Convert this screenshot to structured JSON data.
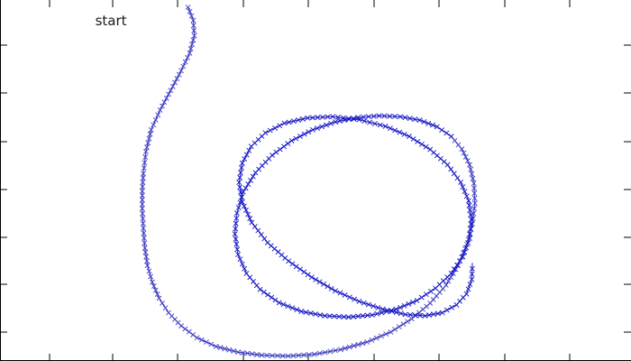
{
  "chart_data": {
    "type": "line",
    "title": "",
    "xlabel": "",
    "ylabel": "",
    "grid": false,
    "legend": "none",
    "marker": "x",
    "line_color": "#3f3fc4",
    "dense_color": "#1010c8",
    "xlim": [
      0,
      10
    ],
    "ylim": [
      0,
      8
    ],
    "annotation": {
      "text": "start",
      "x": 1.5,
      "y": 7.6
    },
    "series": [
      {
        "x": [
          2.75,
          2.85,
          2.87,
          2.78,
          2.62,
          2.42,
          2.22,
          2.05,
          1.95,
          1.9,
          1.88,
          1.88,
          1.9,
          1.93,
          1.98,
          2.07,
          2.2,
          2.38,
          2.62,
          2.92,
          3.28,
          3.7,
          4.15,
          4.65,
          5.15,
          5.65,
          6.15,
          6.6,
          7.0,
          7.35,
          7.65,
          7.88,
          8.05,
          8.15,
          8.2,
          8.18,
          8.1,
          7.95,
          7.75,
          7.48,
          7.15,
          6.78,
          6.38,
          5.98,
          5.55,
          5.12,
          4.72,
          4.35,
          4.03,
          3.8,
          3.68,
          3.64,
          3.7,
          3.86,
          4.12,
          4.48,
          4.9,
          5.35,
          5.8,
          6.25,
          6.7,
          7.1,
          7.45,
          7.75,
          7.97,
          8.1,
          8.13,
          8.08,
          7.93,
          7.68,
          7.35,
          6.95,
          6.5,
          6.0,
          5.5,
          5.02,
          4.58,
          4.22,
          3.95,
          3.78,
          3.72,
          3.78,
          3.96,
          4.26,
          4.66,
          5.1,
          5.55,
          6.0,
          6.45,
          6.88,
          7.25,
          7.58,
          7.85,
          8.04,
          8.14,
          8.15
        ],
        "y": [
          8.0,
          7.7,
          7.35,
          6.95,
          6.55,
          6.1,
          5.65,
          5.2,
          4.7,
          4.2,
          3.8,
          3.4,
          2.95,
          2.5,
          2.1,
          1.72,
          1.35,
          1.02,
          0.72,
          0.45,
          0.25,
          0.12,
          0.05,
          0.03,
          0.07,
          0.18,
          0.35,
          0.58,
          0.88,
          1.24,
          1.65,
          2.1,
          2.58,
          3.05,
          3.52,
          3.98,
          4.4,
          4.76,
          5.05,
          5.27,
          5.42,
          5.5,
          5.52,
          5.48,
          5.38,
          5.2,
          4.95,
          4.62,
          4.22,
          3.78,
          3.3,
          2.82,
          2.35,
          1.92,
          1.55,
          1.25,
          1.05,
          0.95,
          0.92,
          0.97,
          1.1,
          1.3,
          1.58,
          1.92,
          2.3,
          2.72,
          3.15,
          3.58,
          4.0,
          4.4,
          4.75,
          5.05,
          5.28,
          5.43,
          5.5,
          5.47,
          5.35,
          5.13,
          4.82,
          4.44,
          4.0,
          3.55,
          3.08,
          2.62,
          2.2,
          1.83,
          1.52,
          1.28,
          1.1,
          0.98,
          0.95,
          1.02,
          1.2,
          1.45,
          1.78,
          2.15
        ]
      }
    ]
  }
}
